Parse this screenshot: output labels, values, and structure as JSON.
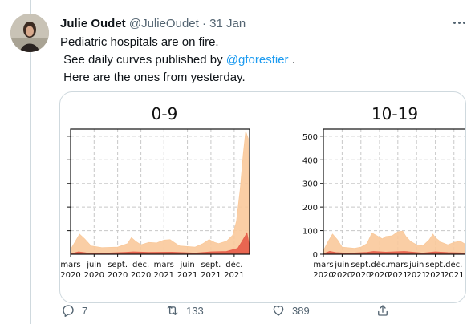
{
  "tweet": {
    "author_name": "Julie Oudet",
    "author_handle": "@JulieOudet",
    "separator": "·",
    "date": "31 Jan",
    "text_line1": "Pediatric hospitals are on fire.",
    "text_line2_prefix": " See daily curves published by ",
    "mention": "@gforestier",
    "text_line2_suffix": " .",
    "text_line3": " Here are the ones from yesterday."
  },
  "actions": {
    "replies": "7",
    "retweets": "133",
    "likes": "389"
  },
  "colors": {
    "accent": "#1d9bf0",
    "muted": "#536471",
    "fill_light": "#f9c99b",
    "fill_dark": "#e8604c"
  },
  "icons": {
    "reply": "reply-icon",
    "retweet": "retweet-icon",
    "like": "heart-icon",
    "share": "share-icon",
    "more": "more-icon"
  },
  "chart_data": [
    {
      "type": "area",
      "title": "0-9",
      "x_tick_labels": [
        [
          "mars",
          "2020"
        ],
        [
          "juin",
          "2020"
        ],
        [
          "sept.",
          "2020"
        ],
        [
          "déc.",
          "2020"
        ],
        [
          "mars",
          "2021"
        ],
        [
          "juin",
          "2021"
        ],
        [
          "sept.",
          "2021"
        ],
        [
          "déc.",
          "2021"
        ]
      ],
      "x_ticks": [
        "2020-03",
        "2020-06",
        "2020-09",
        "2020-12",
        "2021-03",
        "2021-06",
        "2021-09",
        "2021-12"
      ],
      "xlim": [
        "2020-03",
        "2022-01-30"
      ],
      "ylim": [
        0,
        530
      ],
      "grid": true,
      "series": [
        {
          "color": "#f9c99b",
          "x": [
            "2020-03",
            "2020-03-20",
            "2020-04-05",
            "2020-04-25",
            "2020-05-20",
            "2020-07",
            "2020-09",
            "2020-10-10",
            "2020-10-25",
            "2020-11-10",
            "2020-12",
            "2021-01",
            "2021-02",
            "2021-03",
            "2021-03-25",
            "2021-04-10",
            "2021-05",
            "2021-07",
            "2021-08",
            "2021-08-25",
            "2021-09-15",
            "2021-10",
            "2021-11",
            "2021-11-25",
            "2021-12-10",
            "2021-12-25",
            "2022-01-05",
            "2022-01-15",
            "2022-01-25",
            "2022-01-30"
          ],
          "values": [
            20,
            55,
            85,
            65,
            35,
            28,
            30,
            45,
            70,
            55,
            40,
            50,
            48,
            60,
            62,
            50,
            35,
            30,
            45,
            62,
            50,
            45,
            55,
            80,
            140,
            280,
            420,
            520,
            490,
            120
          ]
        },
        {
          "color": "#e8604c",
          "x": [
            "2020-03",
            "2020-04",
            "2020-05",
            "2020-07",
            "2020-10",
            "2020-11",
            "2021-01",
            "2021-04",
            "2021-07",
            "2021-09",
            "2021-11",
            "2021-12-15",
            "2022-01",
            "2022-01-20",
            "2022-01-30"
          ],
          "values": [
            2,
            10,
            6,
            4,
            8,
            10,
            8,
            9,
            5,
            10,
            12,
            25,
            55,
            90,
            30
          ]
        }
      ]
    },
    {
      "type": "area",
      "title": "10-19",
      "x_tick_labels": [
        [
          "mars",
          "2020"
        ],
        [
          "juin",
          "2020"
        ],
        [
          "sept.",
          "2020"
        ],
        [
          "déc.",
          "2020"
        ],
        [
          "mars",
          "2021"
        ],
        [
          "juin",
          "2021"
        ],
        [
          "sept.",
          "2021"
        ],
        [
          "déc.",
          "2021"
        ]
      ],
      "x_ticks": [
        "2020-03",
        "2020-06",
        "2020-09",
        "2020-12",
        "2021-03",
        "2021-06",
        "2021-09",
        "2021-12"
      ],
      "xlim": [
        "2020-03",
        "2022-01-30"
      ],
      "yticks": [
        0,
        100,
        200,
        300,
        400,
        500
      ],
      "ylim": [
        0,
        530
      ],
      "grid": true,
      "series": [
        {
          "color": "#f9c99b",
          "x": [
            "2020-03",
            "2020-03-25",
            "2020-04-15",
            "2020-05-10",
            "2020-06",
            "2020-08",
            "2020-09",
            "2020-10",
            "2020-10-25",
            "2020-11-15",
            "2020-12-15",
            "2021-01",
            "2021-02",
            "2021-03",
            "2021-03-25",
            "2021-04-10",
            "2021-05",
            "2021-06",
            "2021-07",
            "2021-08",
            "2021-08-20",
            "2021-09",
            "2021-10",
            "2021-11",
            "2021-12",
            "2022-01",
            "2022-01-30"
          ],
          "values": [
            15,
            55,
            85,
            60,
            30,
            25,
            30,
            45,
            90,
            80,
            65,
            75,
            78,
            95,
            98,
            75,
            55,
            40,
            35,
            60,
            85,
            70,
            50,
            40,
            50,
            55,
            40
          ]
        },
        {
          "color": "#e8604c",
          "x": [
            "2020-03",
            "2020-04",
            "2020-05",
            "2020-07",
            "2020-10",
            "2020-11",
            "2021-01",
            "2021-04",
            "2021-07",
            "2021-09",
            "2021-11",
            "2022-01",
            "2022-01-30"
          ],
          "values": [
            2,
            12,
            7,
            4,
            8,
            12,
            9,
            12,
            5,
            10,
            7,
            6,
            4
          ]
        }
      ]
    }
  ]
}
